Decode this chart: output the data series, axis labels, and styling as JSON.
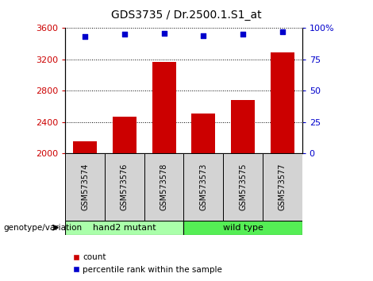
{
  "title": "GDS3735 / Dr.2500.1.S1_at",
  "categories": [
    "GSM573574",
    "GSM573576",
    "GSM573578",
    "GSM573573",
    "GSM573575",
    "GSM573577"
  ],
  "bar_heights": [
    2150,
    2470,
    3170,
    2510,
    2680,
    3290
  ],
  "percentile_ranks": [
    93,
    95,
    96,
    94,
    95,
    97
  ],
  "bar_color": "#cc0000",
  "marker_color": "#0000cc",
  "ylim_left": [
    2000,
    3600
  ],
  "ylim_right": [
    0,
    100
  ],
  "yticks_left": [
    2000,
    2400,
    2800,
    3200,
    3600
  ],
  "yticks_right": [
    0,
    25,
    50,
    75,
    100
  ],
  "groups": [
    {
      "label": "hand2 mutant",
      "start": 0,
      "end": 3,
      "color": "#aaffaa"
    },
    {
      "label": "wild type",
      "start": 3,
      "end": 6,
      "color": "#55ee55"
    }
  ],
  "group_label_prefix": "genotype/variation",
  "legend_count_label": "count",
  "legend_pct_label": "percentile rank within the sample",
  "title_fontsize": 10,
  "axis_label_color_left": "#cc0000",
  "axis_label_color_right": "#0000cc",
  "xlabel_area_color": "#d3d3d3",
  "bar_bottom": 2000
}
